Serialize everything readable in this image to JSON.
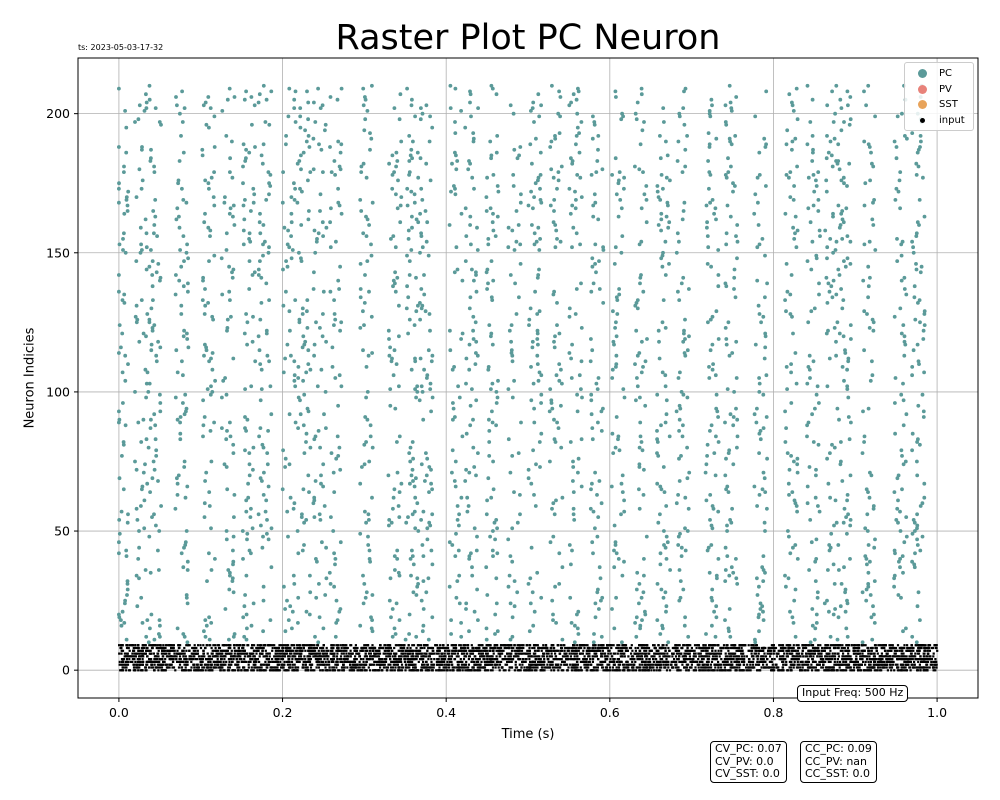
{
  "chart_data": {
    "type": "scatter",
    "title": "Raster Plot PC Neuron",
    "timestamp": "ts: 2023-05-03-17-32",
    "xlabel": "Time (s)",
    "ylabel": "Neuron Indicies",
    "xlim": [
      -0.05,
      1.05
    ],
    "ylim": [
      -10,
      220
    ],
    "xticks": [
      0.0,
      0.2,
      0.4,
      0.6,
      0.8,
      1.0
    ],
    "xtick_labels": [
      "0.0",
      "0.2",
      "0.4",
      "0.6",
      "0.8",
      "1.0"
    ],
    "yticks": [
      0,
      50,
      100,
      150,
      200
    ],
    "ytick_labels": [
      "0",
      "50",
      "100",
      "150",
      "200"
    ],
    "grid": true,
    "legend_position": "top-right",
    "series": [
      {
        "name": "PC",
        "color": "#5b9a99",
        "neuron_range": [
          10,
          210
        ],
        "time_range": [
          0.0,
          1.0
        ],
        "spikes": "dense, ~18 spikes per neuron, synchronized vertical bands"
      },
      {
        "name": "PV",
        "color": "#e8827a",
        "spikes": []
      },
      {
        "name": "SST",
        "color": "#e8a35a",
        "spikes": []
      },
      {
        "name": "input",
        "color": "#000000",
        "neuron_range": [
          0,
          9
        ],
        "time_range": [
          0.0,
          1.0
        ],
        "spikes": "very dense, ~500 Hz"
      }
    ],
    "annotations": {
      "input_freq": "Input Freq: 500 Hz",
      "cv_lines": [
        "CV_PC: 0.07",
        "CV_PV: 0.0",
        "CV_SST: 0.0"
      ],
      "cc_lines": [
        "CC_PC: 0.09",
        "CC_PV: nan",
        "CC_SST: 0.0"
      ]
    }
  }
}
